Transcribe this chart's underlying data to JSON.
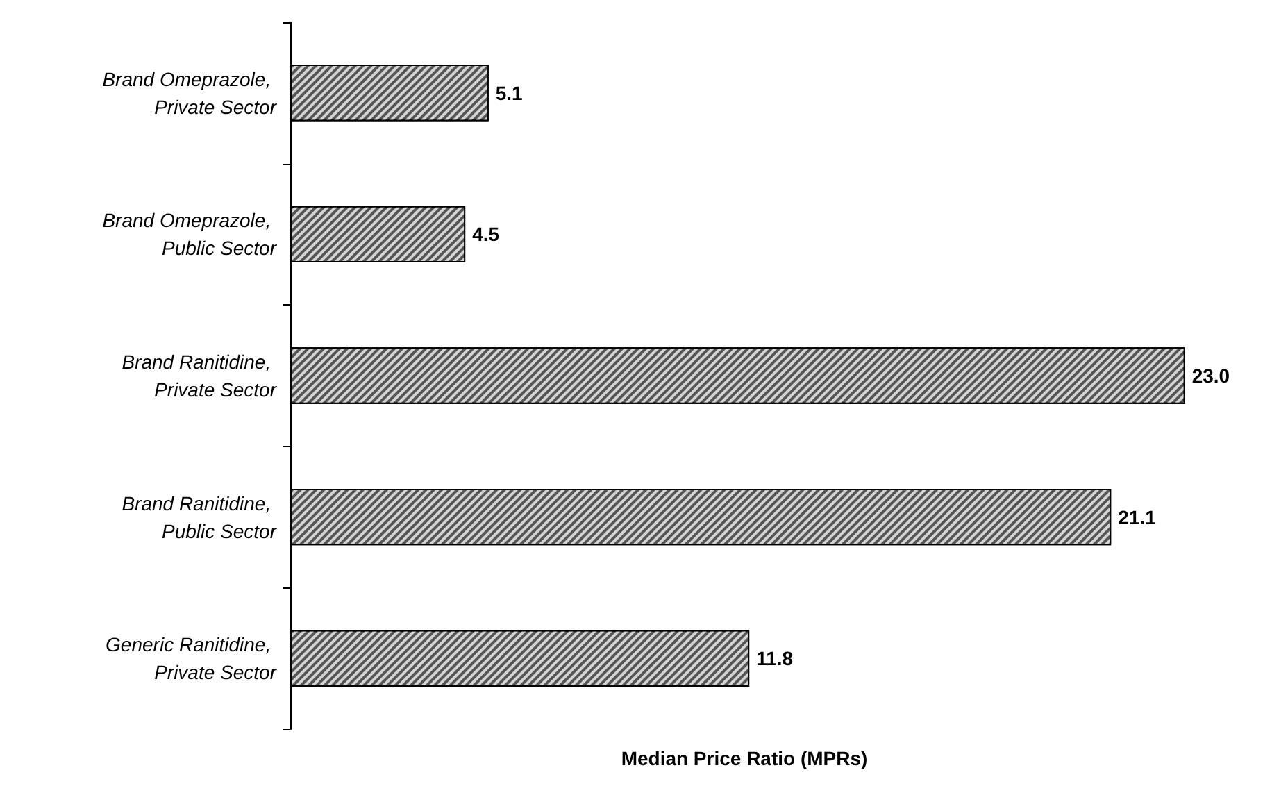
{
  "chart_data": {
    "type": "bar",
    "orientation": "horizontal",
    "xlabel": "Median Price Ratio (MPRs)",
    "categories": [
      "Brand Omeprazole, Private Sector",
      "Brand Omeprazole, Public Sector",
      "Brand Ranitidine, Private Sector",
      "Brand Ranitidine, Public Sector",
      "Generic Ranitidine, Private Sector"
    ],
    "values": [
      5.1,
      4.5,
      23.0,
      21.1,
      11.8
    ],
    "value_labels": [
      "5.1",
      "4.5",
      "23.0",
      "21.1",
      "11.8"
    ],
    "color": "#555555"
  }
}
